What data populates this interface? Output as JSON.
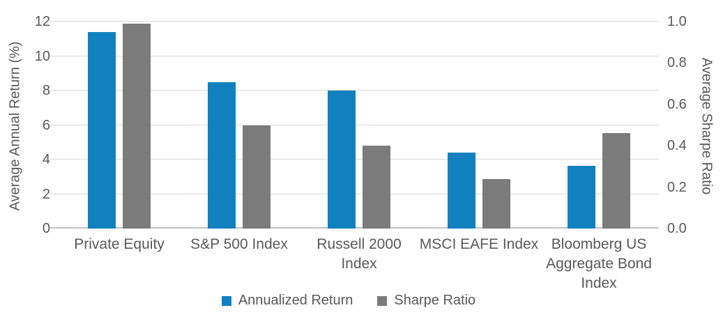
{
  "chart_data": {
    "type": "bar",
    "categories": [
      "Private Equity",
      "S&P 500 Index",
      "Russell 2000\nIndex",
      "MSCI EAFE Index",
      "Bloomberg US\nAggregate Bond\nIndex"
    ],
    "series": [
      {
        "name": "Annualized Return",
        "axis": "left",
        "color": "#1081be",
        "values": [
          11.4,
          8.5,
          8.0,
          4.4,
          3.65
        ]
      },
      {
        "name": "Sharpe Ratio",
        "axis": "right",
        "color": "#7b7b7b",
        "values": [
          0.99,
          0.5,
          0.4,
          0.24,
          0.46
        ]
      }
    ],
    "left_axis": {
      "label": "Average Annual Return (%)",
      "min": 0,
      "max": 12,
      "ticks": [
        "0",
        "2",
        "4",
        "6",
        "8",
        "10",
        "12"
      ]
    },
    "right_axis": {
      "label": "Average Sharpe Ratio",
      "min": 0,
      "max": 1,
      "ticks": [
        "0.0",
        "0.2",
        "0.4",
        "0.6",
        "0.8",
        "1.0"
      ]
    },
    "grid": true,
    "legend_position": "bottom",
    "colors": {
      "annualized_return": "#1081be",
      "sharpe_ratio": "#7b7b7b",
      "gridline": "#d9d9d9",
      "axis_line": "#c3c3c3",
      "text": "#595959"
    }
  }
}
